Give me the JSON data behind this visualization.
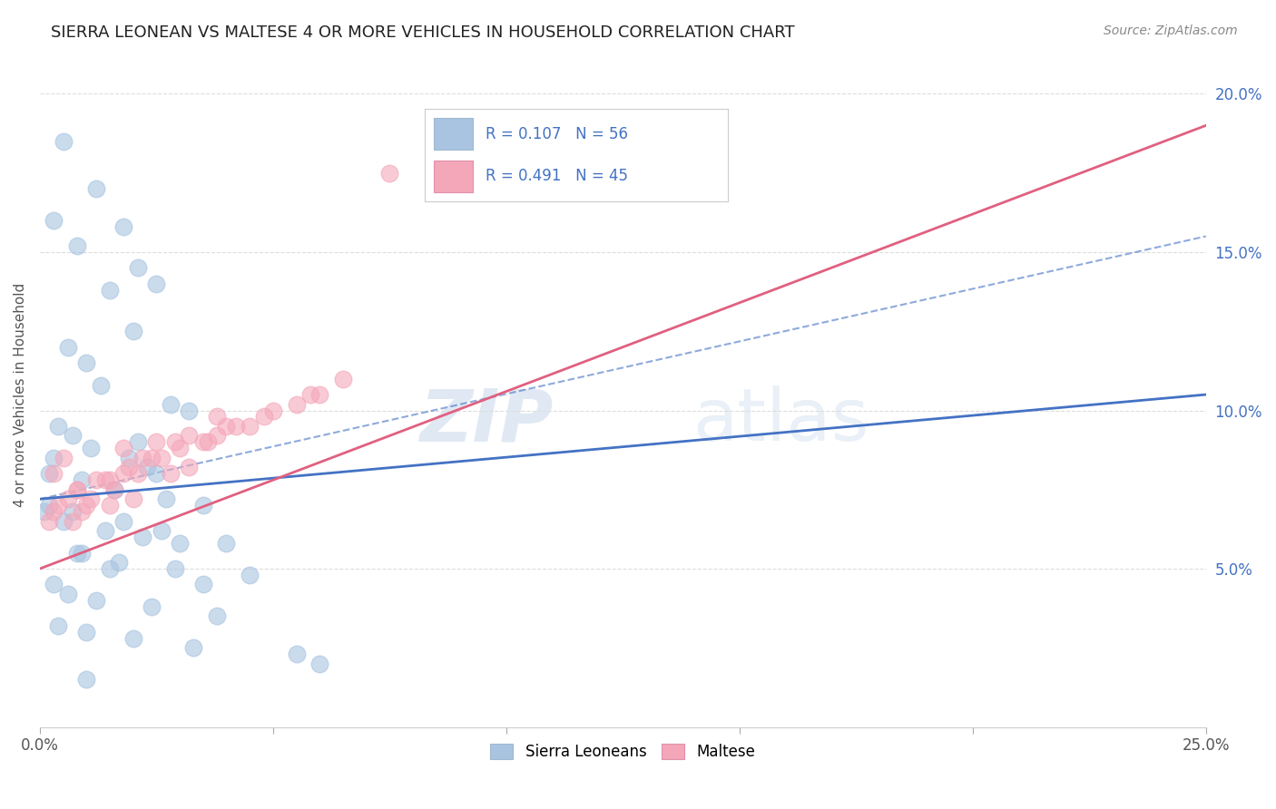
{
  "title": "SIERRA LEONEAN VS MALTESE 4 OR MORE VEHICLES IN HOUSEHOLD CORRELATION CHART",
  "source": "Source: ZipAtlas.com",
  "ylabel": "4 or more Vehicles in Household",
  "xlim": [
    0.0,
    25.0
  ],
  "ylim": [
    0.0,
    21.0
  ],
  "yticks": [
    5.0,
    10.0,
    15.0,
    20.0
  ],
  "legend_labels": [
    "Sierra Leoneans",
    "Maltese"
  ],
  "blue_R": "R = 0.107",
  "blue_N": "N = 56",
  "pink_R": "R = 0.491",
  "pink_N": "N = 45",
  "blue_color": "#a8c4e0",
  "pink_color": "#f4a7b9",
  "blue_line_color": "#4472c4",
  "pink_line_color": "#e06080",
  "blue_scatter_x": [
    0.5,
    1.2,
    1.8,
    2.1,
    2.5,
    0.3,
    0.8,
    1.5,
    2.0,
    0.6,
    1.0,
    1.3,
    2.8,
    3.2,
    0.4,
    0.7,
    1.1,
    1.9,
    2.3,
    0.2,
    0.9,
    1.6,
    2.7,
    3.5,
    0.1,
    0.5,
    1.4,
    2.2,
    3.0,
    0.8,
    1.7,
    2.9,
    4.5,
    0.3,
    0.6,
    1.2,
    2.4,
    3.8,
    0.4,
    1.0,
    2.0,
    3.3,
    5.5,
    6.0,
    0.2,
    0.7,
    1.8,
    2.6,
    4.0,
    0.9,
    1.5,
    3.5,
    2.1,
    0.3,
    2.5,
    1.0
  ],
  "blue_scatter_y": [
    18.5,
    17.0,
    15.8,
    14.5,
    14.0,
    16.0,
    15.2,
    13.8,
    12.5,
    12.0,
    11.5,
    10.8,
    10.2,
    10.0,
    9.5,
    9.2,
    8.8,
    8.5,
    8.2,
    8.0,
    7.8,
    7.5,
    7.2,
    7.0,
    6.8,
    6.5,
    6.2,
    6.0,
    5.8,
    5.5,
    5.2,
    5.0,
    4.8,
    4.5,
    4.2,
    4.0,
    3.8,
    3.5,
    3.2,
    3.0,
    2.8,
    2.5,
    2.3,
    2.0,
    7.0,
    6.8,
    6.5,
    6.2,
    5.8,
    5.5,
    5.0,
    4.5,
    9.0,
    8.5,
    8.0,
    1.5
  ],
  "pink_scatter_x": [
    0.3,
    0.8,
    1.5,
    0.5,
    2.5,
    1.8,
    0.2,
    1.2,
    3.2,
    2.0,
    0.9,
    1.6,
    4.5,
    2.8,
    1.0,
    3.8,
    0.6,
    2.2,
    5.0,
    1.4,
    3.5,
    0.7,
    4.8,
    2.6,
    1.8,
    6.0,
    3.0,
    0.4,
    5.5,
    2.4,
    1.1,
    4.2,
    3.6,
    0.8,
    7.5,
    2.9,
    1.9,
    5.8,
    3.2,
    0.3,
    4.0,
    2.1,
    6.5,
    1.5,
    3.8
  ],
  "pink_scatter_y": [
    8.0,
    7.5,
    7.0,
    8.5,
    9.0,
    8.8,
    6.5,
    7.8,
    8.2,
    7.2,
    6.8,
    7.5,
    9.5,
    8.0,
    7.0,
    9.2,
    7.2,
    8.5,
    10.0,
    7.8,
    9.0,
    6.5,
    9.8,
    8.5,
    8.0,
    10.5,
    8.8,
    7.0,
    10.2,
    8.5,
    7.2,
    9.5,
    9.0,
    7.5,
    17.5,
    9.0,
    8.2,
    10.5,
    9.2,
    6.8,
    9.5,
    8.0,
    11.0,
    7.8,
    9.8
  ],
  "blue_line_x": [
    0.0,
    25.0
  ],
  "blue_line_y": [
    7.2,
    10.5
  ],
  "pink_line_x": [
    0.0,
    25.0
  ],
  "pink_line_y": [
    5.0,
    19.0
  ],
  "dash_line_x": [
    0.0,
    25.0
  ],
  "dash_line_y": [
    7.2,
    15.5
  ],
  "background_color": "#ffffff",
  "grid_color": "#dddddd",
  "title_fontsize": 13,
  "source_fontsize": 10
}
